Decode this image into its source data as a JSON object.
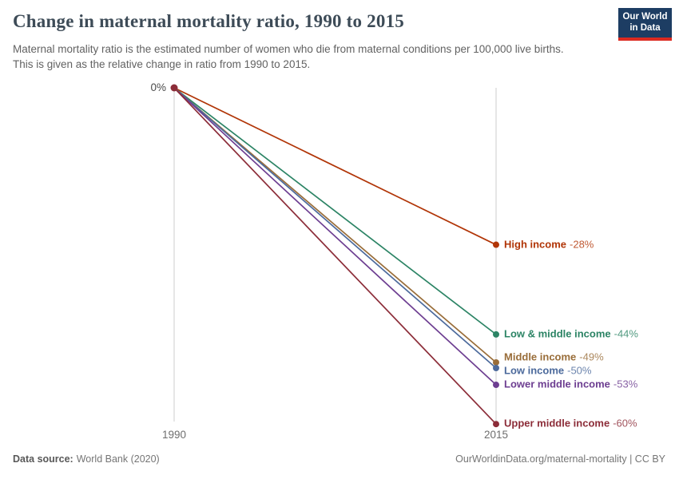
{
  "header": {
    "title": "Change in maternal mortality ratio, 1990 to 2015",
    "subtitle": "Maternal mortality ratio is the estimated number of women who die from maternal conditions per 100,000 live births. This is given as the relative change in ratio from 1990 to 2015.",
    "logo": {
      "line1": "Our World",
      "line2": "in Data",
      "bg_color": "#1d3d63",
      "stripe_color": "#dc2a20"
    }
  },
  "chart_data": {
    "type": "line",
    "title": "Change in maternal mortality ratio, 1990 to 2015",
    "x": [
      1990,
      2015
    ],
    "x_tick_labels": [
      "1990",
      "2015"
    ],
    "y_axis": {
      "start_label": "0%",
      "unit": "%"
    },
    "ylim": [
      -60,
      0
    ],
    "grid": false,
    "legend_position": "right-of-points",
    "series": [
      {
        "name": "High income",
        "values": [
          0,
          -28
        ],
        "value_label": "-28%",
        "color": "#B13507",
        "label_dy": 0
      },
      {
        "name": "Low & middle income",
        "values": [
          0,
          -44
        ],
        "value_label": "-44%",
        "color": "#2C8465",
        "label_dy": 0
      },
      {
        "name": "Middle income",
        "values": [
          0,
          -49
        ],
        "value_label": "-49%",
        "color": "#996D39",
        "label_dy": -6
      },
      {
        "name": "Low income",
        "values": [
          0,
          -50
        ],
        "value_label": "-50%",
        "color": "#4C6A9C",
        "label_dy": 4
      },
      {
        "name": "Lower middle income",
        "values": [
          0,
          -53
        ],
        "value_label": "-53%",
        "color": "#6D3E91",
        "label_dy": 0
      },
      {
        "name": "Upper middle income",
        "values": [
          0,
          -60
        ],
        "value_label": "-60%",
        "color": "#8C2D39",
        "label_dy": 0
      }
    ],
    "origin_dot_color": "#8C2D39"
  },
  "footer": {
    "datasource_label": "Data source:",
    "datasource_value": "World Bank (2020)",
    "link": "OurWorldinData.org/maternal-mortality | CC BY"
  }
}
